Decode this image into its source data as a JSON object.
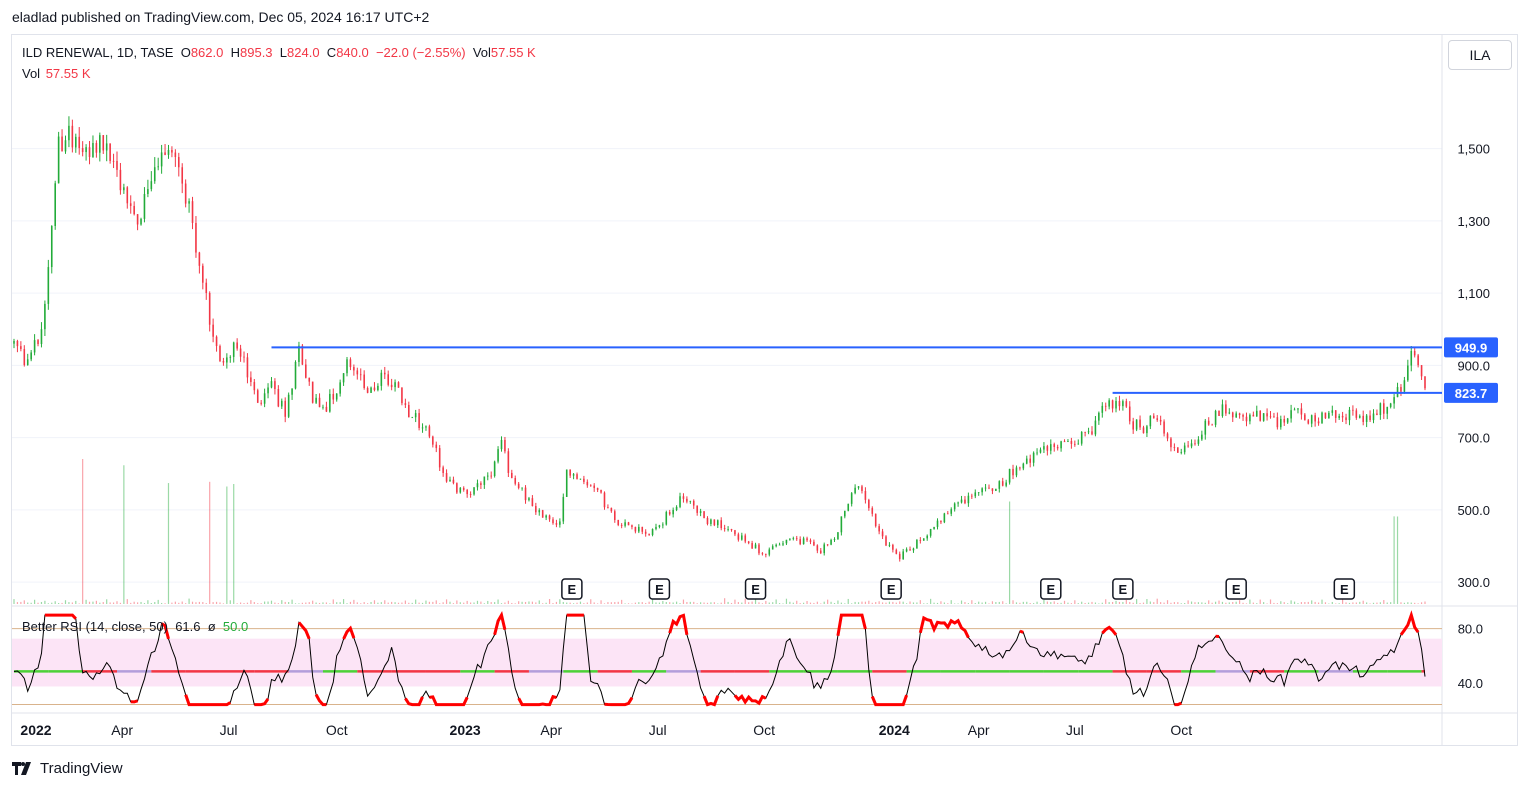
{
  "header": {
    "text": "eladlad published on TradingView.com, Dec 05, 2024 16:17 UTC+2"
  },
  "symbol_box": {
    "text": "ILA"
  },
  "legend": {
    "title": "ILD RENEWAL, 1D, TASE",
    "o_label": "O",
    "o": "862.0",
    "h_label": "H",
    "h": "895.3",
    "l_label": "L",
    "l": "824.0",
    "c_label": "C",
    "c": "840.0",
    "change": "−22.0 (−2.55%)",
    "vol_label": "Vol",
    "vol": "57.55 K"
  },
  "vol_legend": {
    "label": "Vol",
    "value": "57.55 K"
  },
  "rsi_legend": {
    "title": "Better RSI (14, close, 50)",
    "value": "61.6",
    "sep": "ø",
    "mid": "50.0"
  },
  "branding": {
    "text": "TradingView"
  },
  "colors": {
    "up": "#22ab39",
    "down": "#f23645",
    "level": "#2962ff",
    "rsi_line": "#000000",
    "rsi_band": "#fce4f6"
  },
  "chart_data": [
    {
      "type": "candlestick",
      "series": [
        {
          "name": "ILD RENEWAL, 1D, TASE"
        }
      ],
      "y_ticks": [
        "1,500",
        "1,300",
        "1,100",
        "900.0",
        "700.0",
        "500.0",
        "300.0"
      ],
      "y_tick_values": [
        1500,
        1300,
        1100,
        900,
        700,
        500,
        300
      ],
      "x_ticks": [
        "2022",
        "Apr",
        "Jul",
        "Oct",
        "2023",
        "Apr",
        "Jul",
        "Oct",
        "2024",
        "Apr",
        "Jul",
        "Oct"
      ],
      "x_tick_bold": [
        true,
        false,
        false,
        false,
        true,
        false,
        false,
        false,
        true,
        false,
        false,
        false
      ],
      "ylim": [
        245,
        1640
      ],
      "close_path": [
        [
          0,
          960
        ],
        [
          8,
          900
        ],
        [
          16,
          1000
        ],
        [
          20,
          1170
        ],
        [
          26,
          1500
        ],
        [
          32,
          1560
        ],
        [
          40,
          1480
        ],
        [
          48,
          1520
        ],
        [
          56,
          1480
        ],
        [
          64,
          1380
        ],
        [
          72,
          1300
        ],
        [
          80,
          1420
        ],
        [
          88,
          1510
        ],
        [
          94,
          1470
        ],
        [
          100,
          1380
        ],
        [
          110,
          1120
        ],
        [
          120,
          900
        ],
        [
          128,
          960
        ],
        [
          136,
          880
        ],
        [
          144,
          780
        ],
        [
          150,
          850
        ],
        [
          158,
          760
        ],
        [
          166,
          950
        ],
        [
          174,
          800
        ],
        [
          182,
          790
        ],
        [
          188,
          830
        ],
        [
          194,
          900
        ],
        [
          200,
          880
        ],
        [
          206,
          810
        ],
        [
          214,
          870
        ],
        [
          220,
          860
        ],
        [
          226,
          800
        ],
        [
          234,
          750
        ],
        [
          242,
          720
        ],
        [
          250,
          600
        ],
        [
          256,
          560
        ],
        [
          264,
          550
        ],
        [
          270,
          560
        ],
        [
          278,
          600
        ],
        [
          284,
          680
        ],
        [
          290,
          580
        ],
        [
          296,
          550
        ],
        [
          304,
          500
        ],
        [
          312,
          470
        ],
        [
          318,
          470
        ],
        [
          322,
          600
        ],
        [
          330,
          580
        ],
        [
          338,
          570
        ],
        [
          344,
          520
        ],
        [
          350,
          470
        ],
        [
          356,
          460
        ],
        [
          362,
          450
        ],
        [
          370,
          440
        ],
        [
          378,
          470
        ],
        [
          386,
          520
        ],
        [
          390,
          540
        ],
        [
          396,
          510
        ],
        [
          404,
          470
        ],
        [
          412,
          460
        ],
        [
          420,
          430
        ],
        [
          428,
          410
        ],
        [
          436,
          380
        ],
        [
          444,
          400
        ],
        [
          452,
          420
        ],
        [
          462,
          410
        ],
        [
          470,
          390
        ],
        [
          478,
          420
        ],
        [
          484,
          500
        ],
        [
          490,
          560
        ],
        [
          494,
          560
        ],
        [
          500,
          480
        ],
        [
          508,
          410
        ],
        [
          516,
          370
        ],
        [
          524,
          400
        ],
        [
          530,
          430
        ],
        [
          536,
          450
        ],
        [
          542,
          480
        ],
        [
          550,
          520
        ],
        [
          558,
          540
        ],
        [
          566,
          560
        ],
        [
          574,
          570
        ],
        [
          580,
          600
        ],
        [
          588,
          640
        ],
        [
          596,
          650
        ],
        [
          606,
          680
        ],
        [
          616,
          690
        ],
        [
          622,
          700
        ],
        [
          628,
          720
        ],
        [
          634,
          780
        ],
        [
          640,
          800
        ],
        [
          646,
          790
        ],
        [
          652,
          740
        ],
        [
          658,
          730
        ],
        [
          664,
          760
        ],
        [
          670,
          710
        ],
        [
          676,
          660
        ],
        [
          682,
          670
        ],
        [
          688,
          700
        ],
        [
          694,
          730
        ],
        [
          700,
          760
        ],
        [
          706,
          780
        ],
        [
          712,
          770
        ],
        [
          720,
          760
        ],
        [
          728,
          760
        ],
        [
          734,
          740
        ],
        [
          740,
          730
        ],
        [
          746,
          780
        ],
        [
          752,
          750
        ],
        [
          758,
          750
        ],
        [
          764,
          760
        ],
        [
          770,
          760
        ],
        [
          778,
          760
        ],
        [
          786,
          750
        ],
        [
          792,
          760
        ],
        [
          796,
          780
        ],
        [
          800,
          790
        ],
        [
          806,
          820
        ],
        [
          812,
          900
        ],
        [
          814,
          950
        ],
        [
          818,
          900
        ],
        [
          822,
          840
        ]
      ],
      "close_path_note_units": [
        "trading day index",
        "price"
      ],
      "volume_spikes": [
        [
          40,
          610
        ],
        [
          64,
          555
        ],
        [
          90,
          475
        ],
        [
          114,
          485
        ],
        [
          124,
          470
        ],
        [
          128,
          480
        ],
        [
          580,
          410
        ],
        [
          805,
          350
        ]
      ],
      "levels": [
        {
          "label": "949.9",
          "value": 949.9,
          "from_day": 150
        },
        {
          "label": "823.7",
          "value": 823.7,
          "from_day": 640
        }
      ],
      "earnings_markers": [
        {
          "day": 325,
          "label": "E"
        },
        {
          "day": 376,
          "label": "E"
        },
        {
          "day": 432,
          "label": "E"
        },
        {
          "day": 511,
          "label": "E"
        },
        {
          "day": 604,
          "label": "E"
        },
        {
          "day": 646,
          "label": "E"
        },
        {
          "day": 712,
          "label": "E"
        },
        {
          "day": 775,
          "label": "E"
        }
      ]
    },
    {
      "type": "line",
      "series": [
        {
          "name": "Better RSI (14, close, 50)"
        }
      ],
      "y_ticks": [
        "80.0",
        "40.0"
      ],
      "y_tick_values": [
        80,
        40
      ],
      "ylim": [
        20,
        96
      ],
      "upper": 80,
      "lower": 30,
      "mid": 50,
      "seed": 7
    }
  ]
}
